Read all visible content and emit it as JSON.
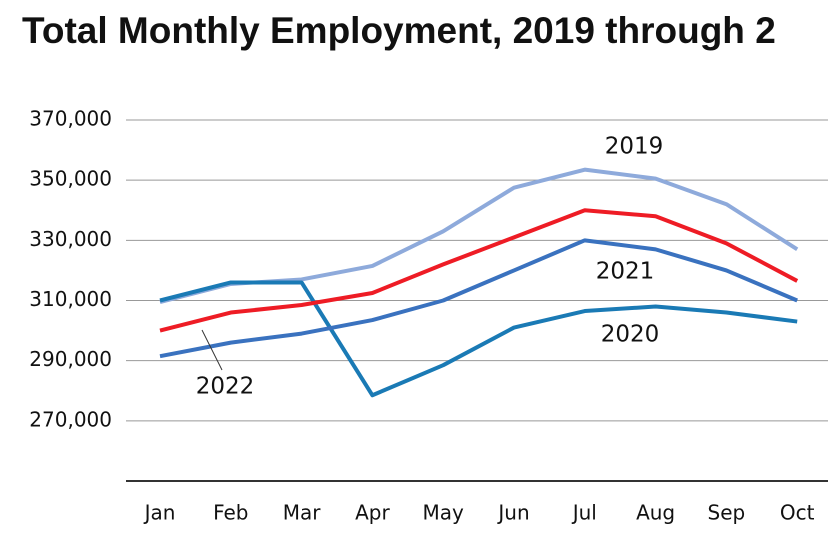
{
  "chart_data": {
    "type": "line",
    "title": "Total Monthly Employment, 2019 through 2",
    "categories": [
      "Jan",
      "Feb",
      "Mar",
      "Apr",
      "May",
      "Jun",
      "Jul",
      "Aug",
      "Sep",
      "Oct"
    ],
    "series": [
      {
        "name": "2019",
        "color": "#8eaadb",
        "values": [
          309500,
          315500,
          317000,
          321500,
          333000,
          347500,
          353500,
          350500,
          342000,
          327000
        ]
      },
      {
        "name": "2020",
        "color": "#1a7ab5",
        "values": [
          310000,
          316000,
          316000,
          278500,
          288500,
          301000,
          306500,
          308000,
          306000,
          303000
        ]
      },
      {
        "name": "2021",
        "color": "#3a72bf",
        "values": [
          291500,
          296000,
          299000,
          303500,
          310000,
          320000,
          330000,
          327000,
          320000,
          310000
        ]
      },
      {
        "name": "2022",
        "color": "#ee1c25",
        "values": [
          300000,
          306000,
          308500,
          312500,
          322000,
          331000,
          340000,
          338000,
          329000,
          316500
        ]
      }
    ],
    "ylim": [
      250000,
      370000
    ],
    "yticks": [
      {
        "value": 270000,
        "label": "270,000"
      },
      {
        "value": 290000,
        "label": "290,000"
      },
      {
        "value": 310000,
        "label": "310,000"
      },
      {
        "value": 330000,
        "label": "330,000"
      },
      {
        "value": 350000,
        "label": "350,000"
      },
      {
        "value": 370000,
        "label": "370,000"
      }
    ],
    "grid": true
  }
}
